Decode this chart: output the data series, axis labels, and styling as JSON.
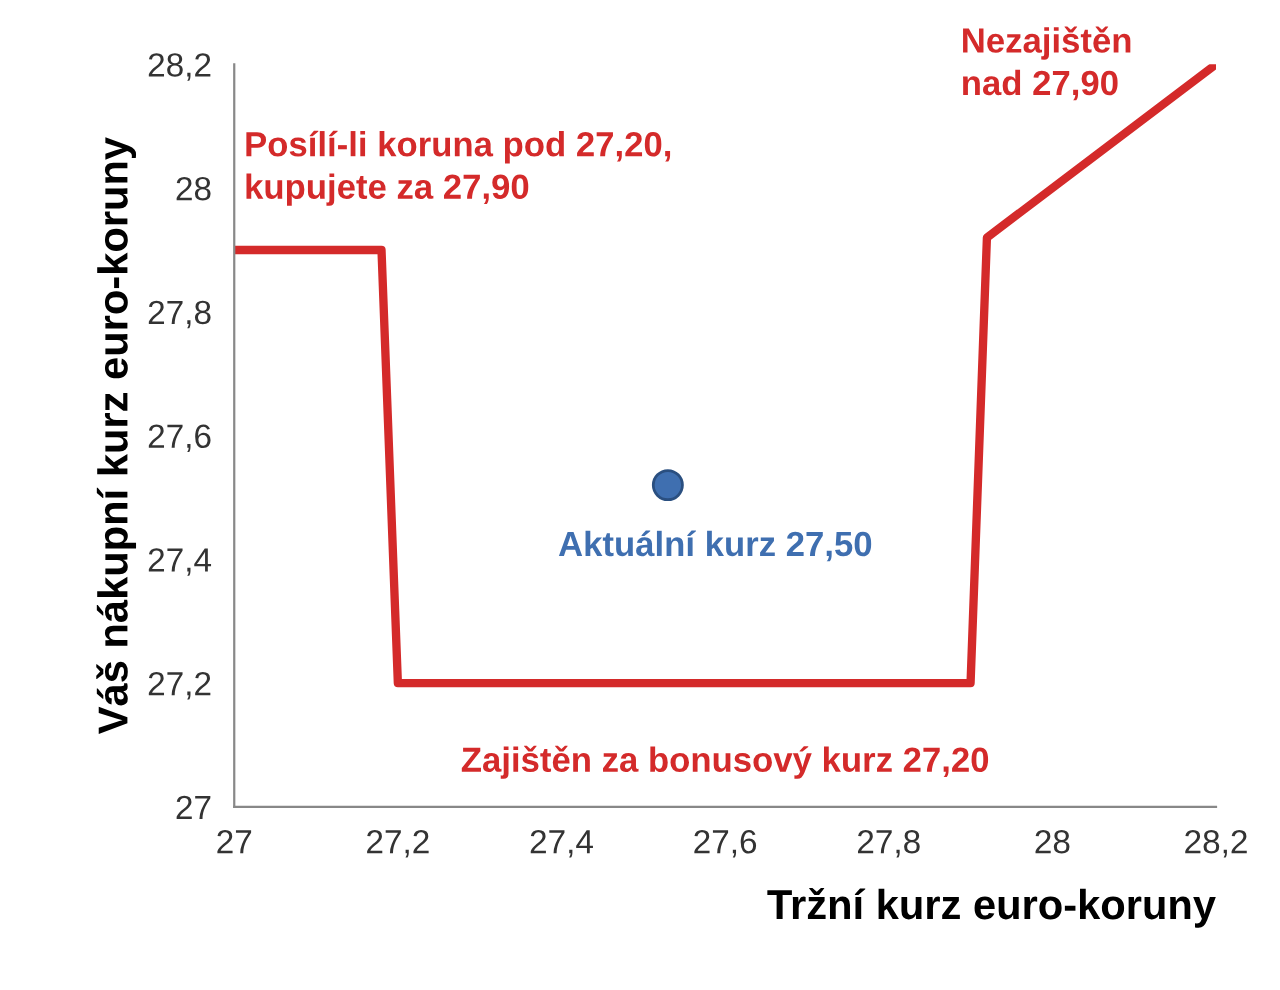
{
  "chart_data": {
    "type": "line",
    "xlabel": "Tržní kurz euro-koruny",
    "ylabel": "Váš nákupní kurz euro-koruny",
    "series": [
      {
        "color": "#d42a2a",
        "x": [
          27,
          27.18,
          27.2,
          27.9,
          27.92,
          28.2
        ],
        "values": [
          27.9,
          27.9,
          27.2,
          27.2,
          27.92,
          28.2
        ]
      },
      {
        "type": "scatter",
        "color": "#3f6fb0",
        "marker": "circle",
        "x": [
          27.53
        ],
        "values": [
          27.52
        ]
      }
    ],
    "annotations": [
      "Posílí-li koruna pod 27,20,\nkupujete za 27,90",
      "Nezajištěn\nnad 27,90",
      "Aktuální kurz 27,50",
      "Zajištěn za bonusový kurz 27,20"
    ],
    "xlim": [
      27,
      28.2
    ],
    "ylim": [
      27,
      28.2
    ],
    "xticks": [
      27,
      {
        "value": 27.2,
        "label": "27,2"
      },
      {
        "value": 27.4,
        "label": "27,4"
      },
      {
        "value": 27.6,
        "label": "27,6"
      },
      {
        "value": 27.8,
        "label": "27,8"
      },
      28,
      {
        "value": 28.2,
        "label": "28,2"
      }
    ],
    "yticks": [
      27,
      {
        "value": 27.2,
        "label": "27,2"
      },
      {
        "value": 27.4,
        "label": "27,4"
      },
      {
        "value": 27.6,
        "label": "27,6"
      },
      {
        "value": 27.8,
        "label": "27,8"
      },
      28,
      {
        "value": 28.2,
        "label": "28,2"
      }
    ],
    "grid": false,
    "legend": false
  }
}
